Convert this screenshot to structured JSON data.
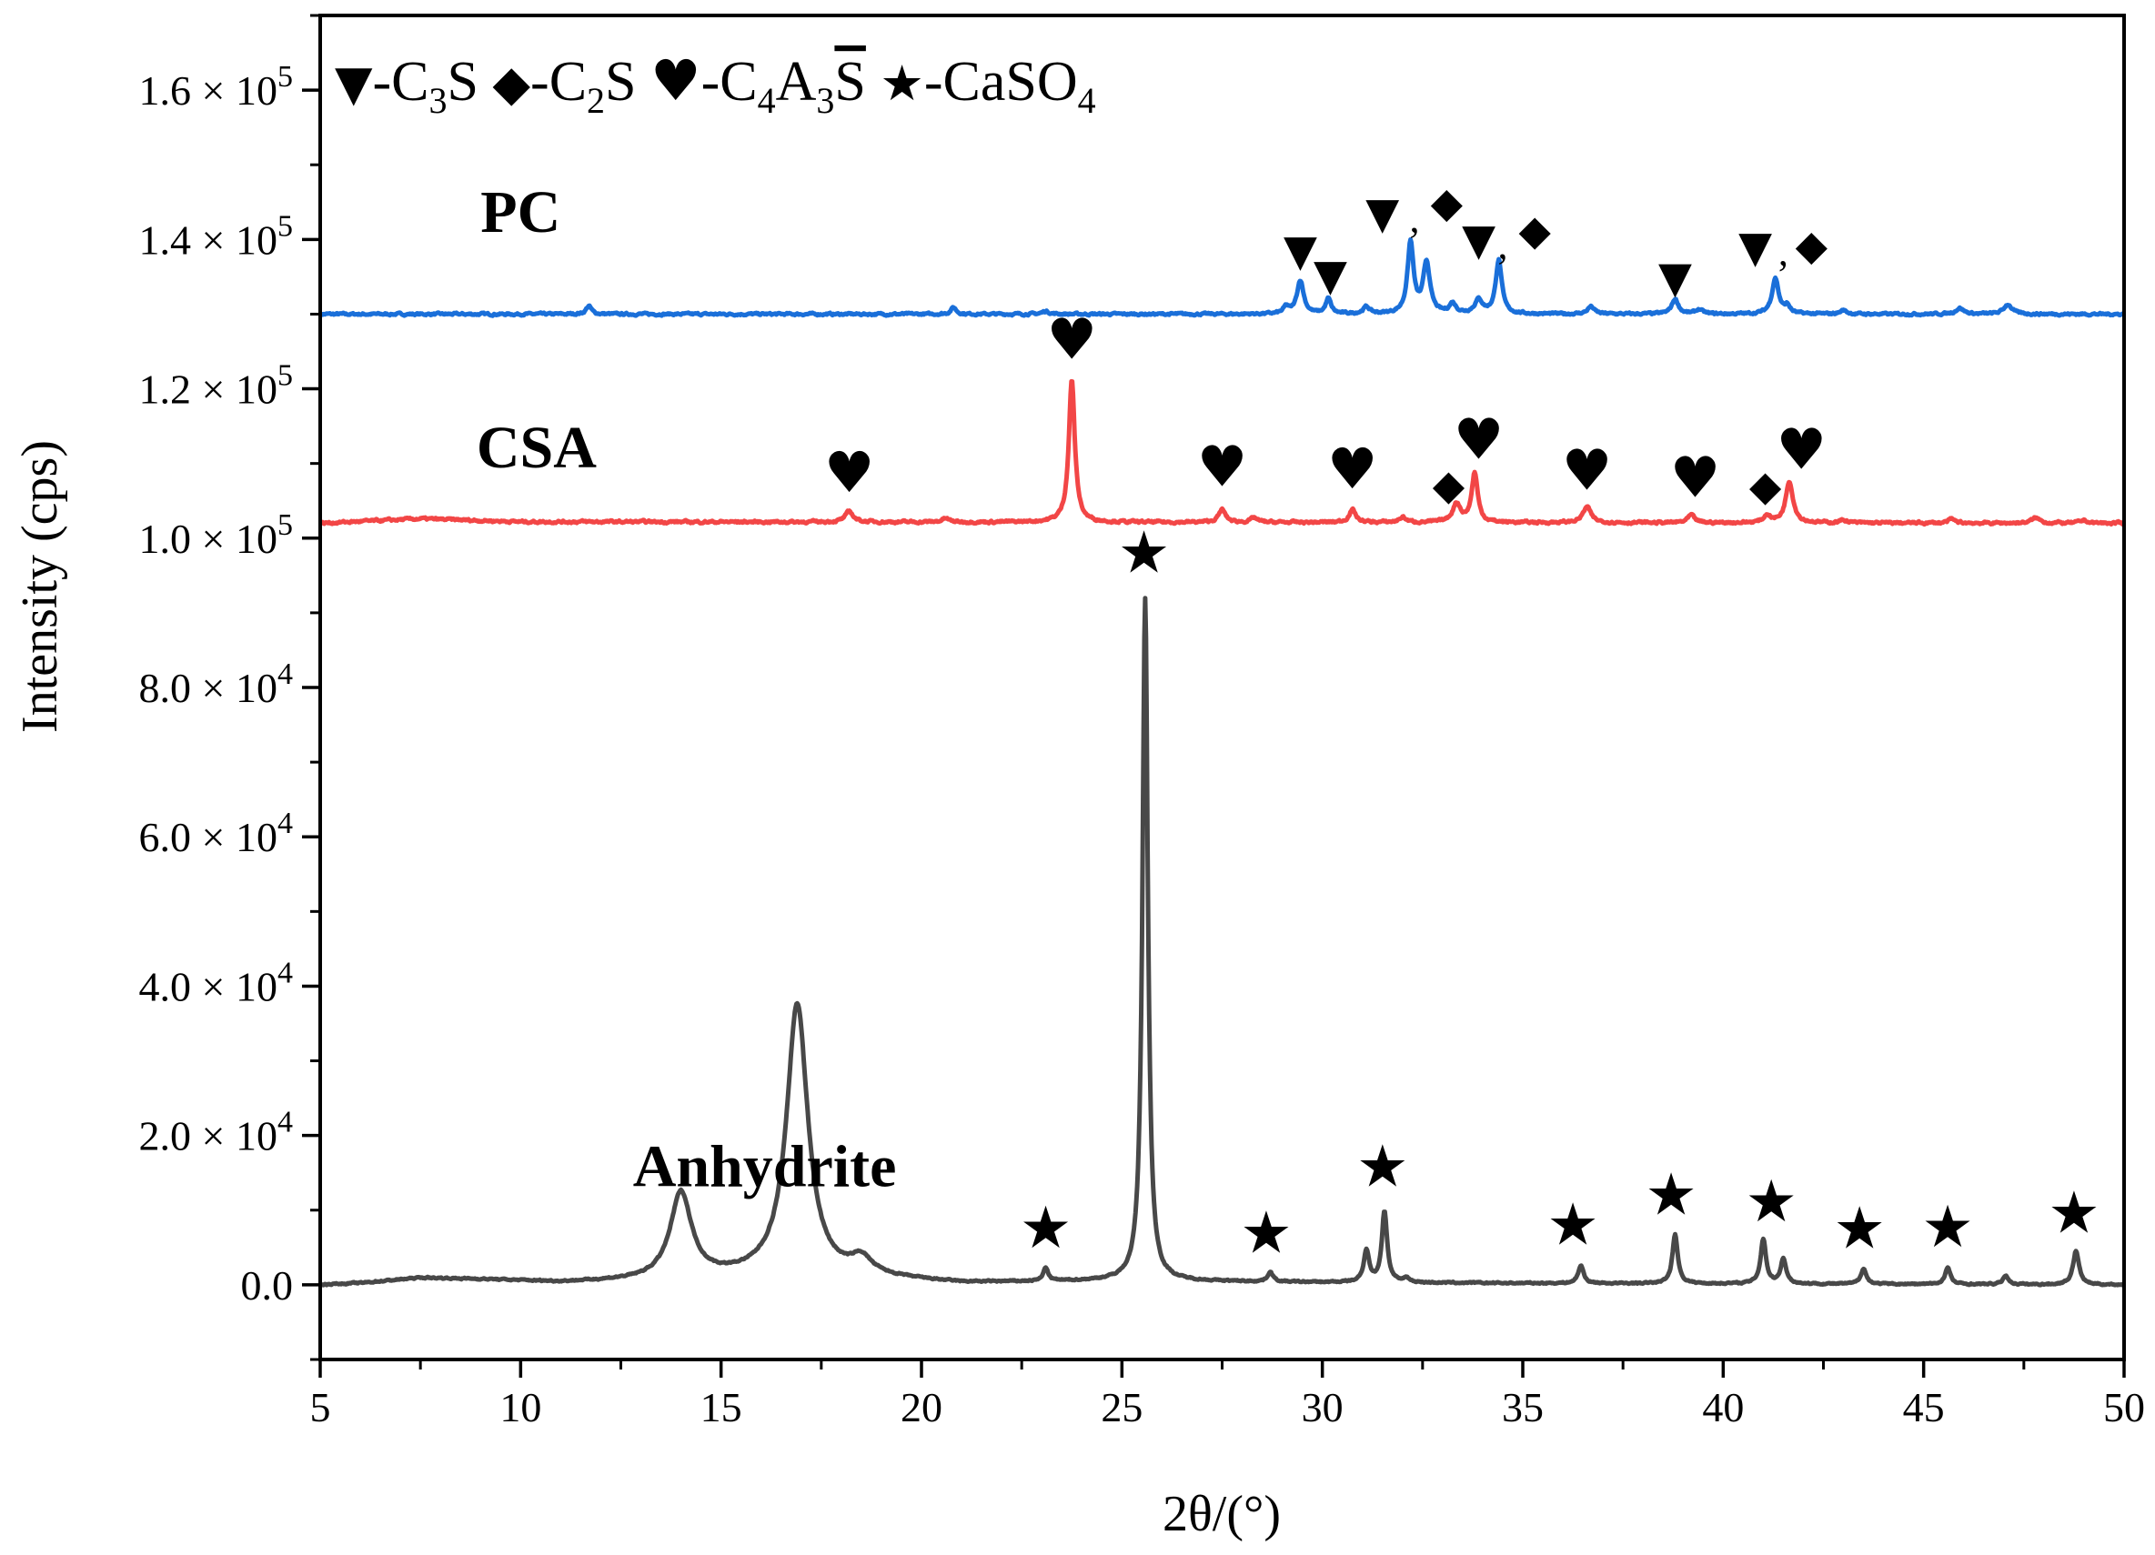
{
  "chart_data": {
    "type": "line",
    "title": "",
    "xlabel": "2θ/(°)",
    "ylabel": "Intensity (cps)",
    "xlim": [
      5,
      50
    ],
    "ylim": [
      -10000,
      170000
    ],
    "x_ticks": [
      5,
      10,
      15,
      20,
      25,
      30,
      35,
      40,
      45,
      50
    ],
    "x_tick_labels": [
      "5",
      "10",
      "15",
      "20",
      "25",
      "30",
      "35",
      "40",
      "45",
      "50"
    ],
    "y_ticks": [
      0,
      20000,
      40000,
      60000,
      80000,
      100000,
      120000,
      140000,
      160000
    ],
    "y_tick_labels": [
      {
        "mantissa": "0.0",
        "times": "",
        "base": "",
        "exp": ""
      },
      {
        "mantissa": "2.0",
        "times": " × ",
        "base": "10",
        "exp": "4"
      },
      {
        "mantissa": "4.0",
        "times": " × ",
        "base": "10",
        "exp": "4"
      },
      {
        "mantissa": "6.0",
        "times": " × ",
        "base": "10",
        "exp": "4"
      },
      {
        "mantissa": "8.0",
        "times": " × ",
        "base": "10",
        "exp": "4"
      },
      {
        "mantissa": "1.0",
        "times": " × ",
        "base": "10",
        "exp": "5"
      },
      {
        "mantissa": "1.2",
        "times": " × ",
        "base": "10",
        "exp": "5"
      },
      {
        "mantissa": "1.4",
        "times": " × ",
        "base": "10",
        "exp": "5"
      },
      {
        "mantissa": "1.6",
        "times": " × ",
        "base": "10",
        "exp": "5"
      }
    ],
    "grid": false,
    "legend_position": "top-left",
    "legend": [
      {
        "symbol": "▼",
        "prefix": "-C",
        "sub": "3",
        "suffix": "S",
        "bar": false,
        "phase": "C3S"
      },
      {
        "symbol": "◆",
        "prefix": "-C",
        "sub": "2",
        "suffix": "S",
        "bar": false,
        "phase": "C2S"
      },
      {
        "symbol": "♥",
        "prefix": "-C",
        "sub": "4",
        "mid": "A",
        "sub2": "3",
        "suffix": "S",
        "bar": true,
        "phase": "C4A3S"
      },
      {
        "symbol": "★",
        "prefix": "-CaSO",
        "sub": "4",
        "suffix": "",
        "bar": false,
        "phase": "CaSO4"
      }
    ],
    "series": [
      {
        "name": "PC",
        "color": "#1a6fd9",
        "baseline": 130000,
        "noise": 220,
        "base_points": [
          [
            5,
            0
          ],
          [
            50,
            0
          ]
        ],
        "peaks": [
          [
            11.7,
            1100,
            0.08
          ],
          [
            20.8,
            900,
            0.08
          ],
          [
            23.1,
            400,
            0.1
          ],
          [
            29.1,
            900,
            0.08
          ],
          [
            29.45,
            4500,
            0.1
          ],
          [
            30.15,
            2000,
            0.08
          ],
          [
            31.1,
            900,
            0.1
          ],
          [
            32.2,
            9500,
            0.09
          ],
          [
            32.6,
            6800,
            0.1
          ],
          [
            33.25,
            1300,
            0.1
          ],
          [
            33.9,
            1800,
            0.12
          ],
          [
            34.4,
            7200,
            0.09
          ],
          [
            36.7,
            1000,
            0.1
          ],
          [
            38.8,
            2000,
            0.1
          ],
          [
            39.4,
            600,
            0.1
          ],
          [
            41.3,
            4800,
            0.1
          ],
          [
            41.6,
            1000,
            0.08
          ],
          [
            43.0,
            500,
            0.1
          ],
          [
            45.9,
            800,
            0.12
          ],
          [
            47.1,
            1300,
            0.12
          ]
        ]
      },
      {
        "name": "CSA",
        "color": "#f24646",
        "baseline": 102000,
        "noise": 250,
        "base_points": [
          [
            5,
            0
          ],
          [
            7.5,
            600
          ],
          [
            10,
            200
          ],
          [
            50,
            0
          ]
        ],
        "peaks": [
          [
            18.2,
            1400,
            0.12
          ],
          [
            20.6,
            500,
            0.1
          ],
          [
            23.75,
            19000,
            0.09
          ],
          [
            27.5,
            1700,
            0.1
          ],
          [
            28.3,
            600,
            0.1
          ],
          [
            30.75,
            1700,
            0.1
          ],
          [
            32.0,
            700,
            0.1
          ],
          [
            33.35,
            2500,
            0.12
          ],
          [
            33.8,
            6600,
            0.09
          ],
          [
            36.6,
            2100,
            0.12
          ],
          [
            39.2,
            1000,
            0.1
          ],
          [
            41.1,
            1000,
            0.1
          ],
          [
            41.65,
            5600,
            0.11
          ],
          [
            43.0,
            400,
            0.1
          ],
          [
            45.7,
            500,
            0.1
          ],
          [
            47.8,
            700,
            0.12
          ],
          [
            49.0,
            400,
            0.1
          ]
        ]
      },
      {
        "name": "Anhydrite",
        "color": "#484848",
        "baseline": 0,
        "noise": 150,
        "base_points": [
          [
            5,
            0
          ],
          [
            6,
            200
          ],
          [
            7.5,
            900
          ],
          [
            9,
            700
          ],
          [
            11,
            300
          ],
          [
            13,
            500
          ],
          [
            16,
            1100
          ],
          [
            19,
            800
          ],
          [
            21,
            200
          ],
          [
            25,
            500
          ],
          [
            30,
            300
          ],
          [
            35,
            200
          ],
          [
            50,
            0
          ]
        ],
        "peaks": [
          [
            14.0,
            11500,
            0.32
          ],
          [
            16.9,
            36500,
            0.32
          ],
          [
            18.5,
            2200,
            0.3
          ],
          [
            23.1,
            1800,
            0.07
          ],
          [
            25.58,
            91500,
            0.08
          ],
          [
            28.7,
            1300,
            0.08
          ],
          [
            31.1,
            4300,
            0.08
          ],
          [
            31.55,
            9500,
            0.08
          ],
          [
            32.1,
            600,
            0.08
          ],
          [
            36.45,
            2400,
            0.08
          ],
          [
            38.8,
            6600,
            0.08
          ],
          [
            41.0,
            6000,
            0.08
          ],
          [
            41.5,
            3400,
            0.08
          ],
          [
            43.5,
            2100,
            0.08
          ],
          [
            45.6,
            2200,
            0.08
          ],
          [
            47.05,
            1200,
            0.08
          ],
          [
            48.8,
            4500,
            0.09
          ]
        ]
      }
    ],
    "series_labels": [
      {
        "text": "PC",
        "x": 9.0,
        "y": 141000
      },
      {
        "text": "CSA",
        "x": 8.9,
        "y": 109500
      },
      {
        "text": "Anhydrite",
        "x": 12.8,
        "y": 13200
      }
    ],
    "annotations": [
      {
        "symbol": "▼",
        "x": 29.45,
        "y": 136500
      },
      {
        "symbol": "▼",
        "x": 30.2,
        "y": 133200
      },
      {
        "symbol": "▼",
        "x": 31.5,
        "y": 141500
      },
      {
        "symbol": ",",
        "x": 32.3,
        "y": 141000
      },
      {
        "symbol": "◆",
        "x": 33.1,
        "y": 143000
      },
      {
        "symbol": "▼",
        "x": 33.9,
        "y": 138000
      },
      {
        "symbol": ",",
        "x": 34.5,
        "y": 137500
      },
      {
        "symbol": "◆",
        "x": 35.3,
        "y": 139300
      },
      {
        "symbol": "▼",
        "x": 38.8,
        "y": 132900
      },
      {
        "symbol": "▼",
        "x": 40.8,
        "y": 137000
      },
      {
        "symbol": ",",
        "x": 41.5,
        "y": 136600
      },
      {
        "symbol": "◆",
        "x": 42.2,
        "y": 137300
      },
      {
        "symbol": "♥",
        "x": 23.75,
        "y": 124000
      },
      {
        "symbol": "♥",
        "x": 18.2,
        "y": 106200
      },
      {
        "symbol": "♥",
        "x": 27.5,
        "y": 107000
      },
      {
        "symbol": "♥",
        "x": 30.75,
        "y": 106700
      },
      {
        "symbol": "◆",
        "x": 33.15,
        "y": 105200
      },
      {
        "symbol": "♥",
        "x": 33.9,
        "y": 110600
      },
      {
        "symbol": "♥",
        "x": 36.6,
        "y": 106500
      },
      {
        "symbol": "♥",
        "x": 39.3,
        "y": 105500
      },
      {
        "symbol": "◆",
        "x": 41.05,
        "y": 105100
      },
      {
        "symbol": "♥",
        "x": 41.95,
        "y": 109300
      },
      {
        "symbol": "★",
        "x": 25.55,
        "y": 95400
      },
      {
        "symbol": "★",
        "x": 23.1,
        "y": 5000
      },
      {
        "symbol": "★",
        "x": 28.6,
        "y": 4300
      },
      {
        "symbol": "★",
        "x": 31.5,
        "y": 13200
      },
      {
        "symbol": "★",
        "x": 36.25,
        "y": 5400
      },
      {
        "symbol": "★",
        "x": 38.7,
        "y": 9400
      },
      {
        "symbol": "★",
        "x": 41.2,
        "y": 8500
      },
      {
        "symbol": "★",
        "x": 43.4,
        "y": 4900
      },
      {
        "symbol": "★",
        "x": 45.6,
        "y": 5100
      },
      {
        "symbol": "★",
        "x": 48.75,
        "y": 7000
      }
    ]
  }
}
